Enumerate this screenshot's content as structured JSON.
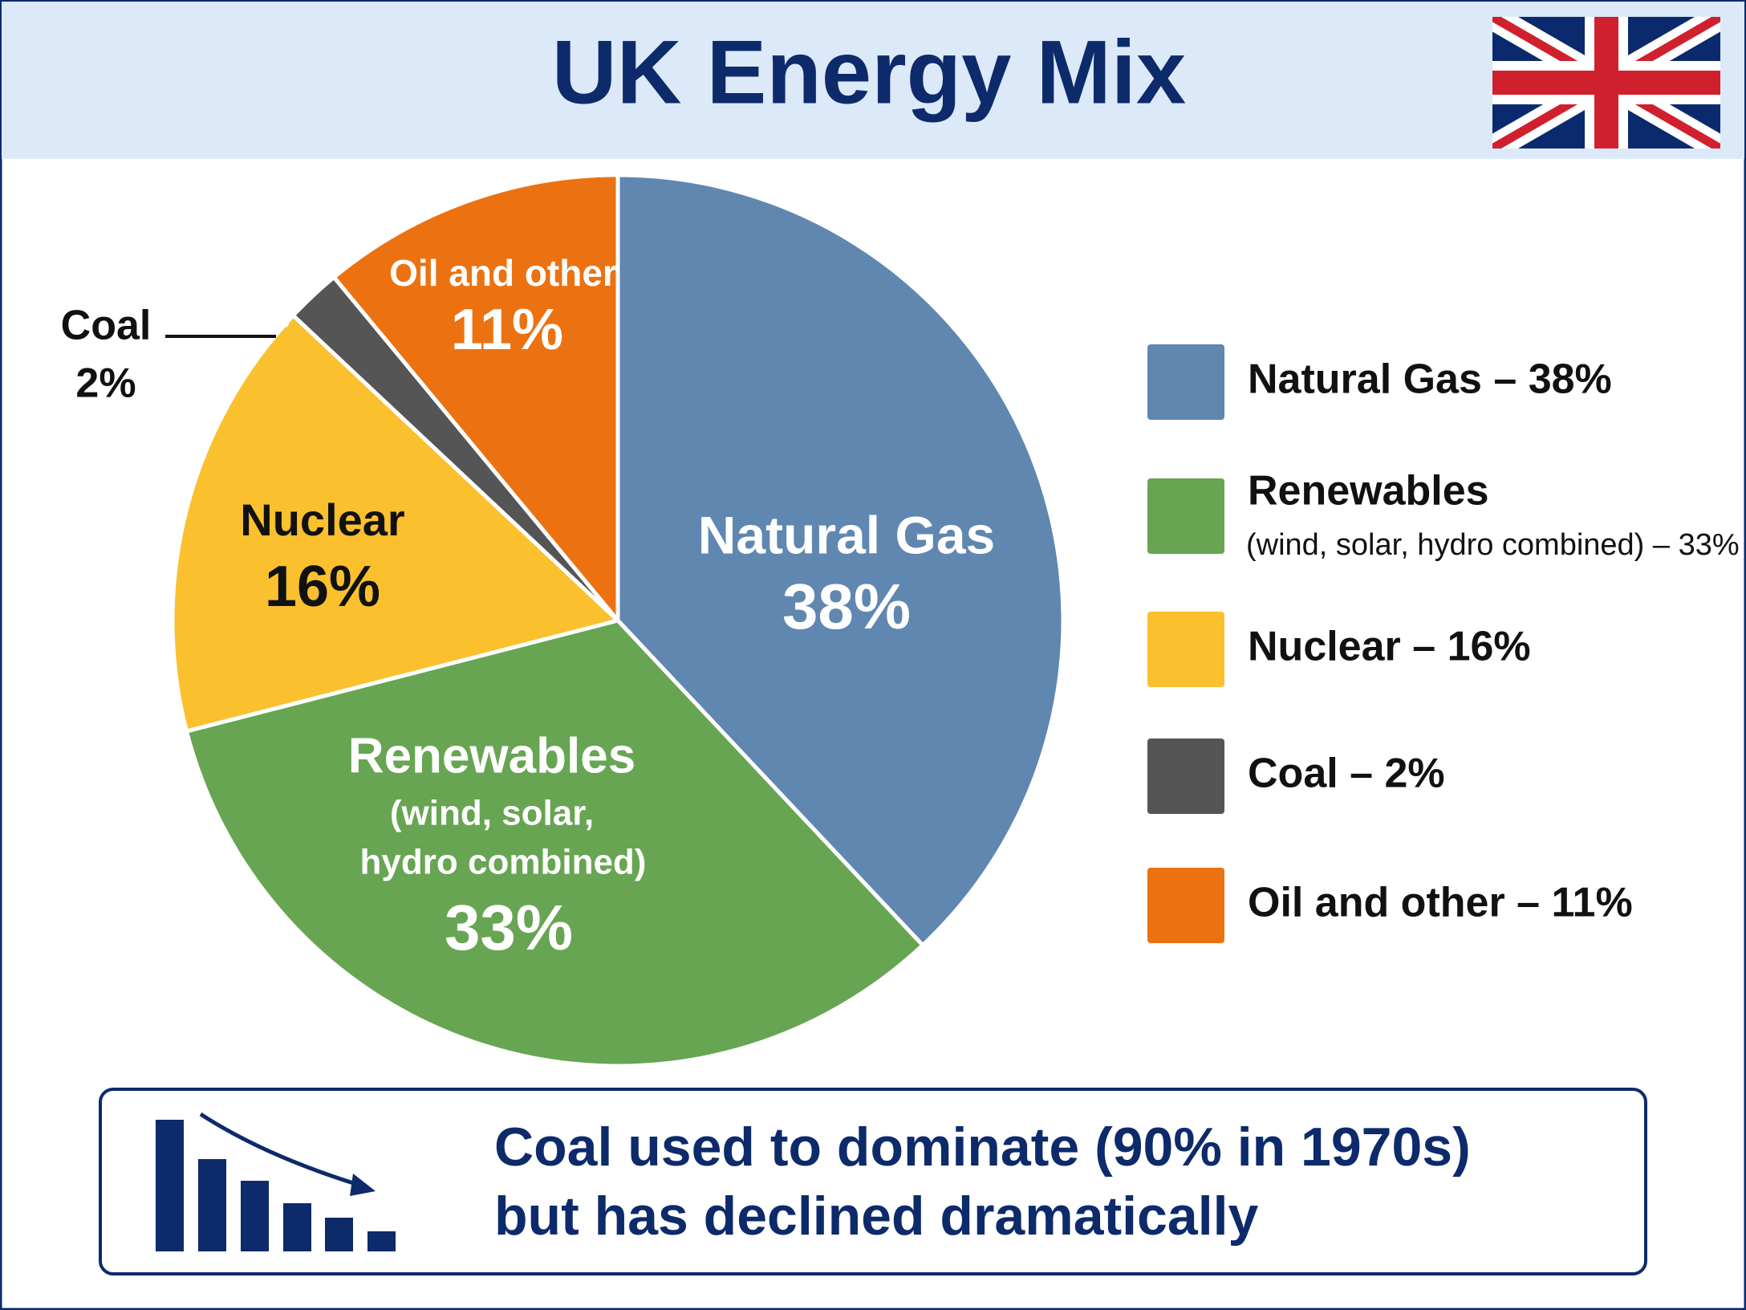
{
  "chart_data": {
    "type": "pie",
    "title": "UK Energy Mix",
    "categories": [
      "Natural Gas",
      "Renewables",
      "Nuclear",
      "Coal",
      "Oil and other"
    ],
    "values": [
      38,
      33,
      16,
      2,
      11
    ],
    "value_labels": [
      "38%",
      "33%",
      "16%",
      "2%",
      "11%"
    ],
    "colors": [
      "#5f87b0",
      "#67a553",
      "#fbc02d",
      "#555555",
      "#ec7211"
    ],
    "renewables_note_lines": [
      "(wind, solar,",
      "hydro combined)"
    ],
    "legend": {
      "position": "right",
      "labels": [
        "Natural Gas – 38%",
        "Renewables",
        "Nuclear – 16%",
        "Coal – 2%",
        "Oil and other – 11%"
      ],
      "renewables_note": "(wind, solar, hydro combined) – 33%"
    },
    "annotation": [
      "Coal used to dominate (90% in 1970s)",
      "but has declined dramatically"
    ]
  }
}
